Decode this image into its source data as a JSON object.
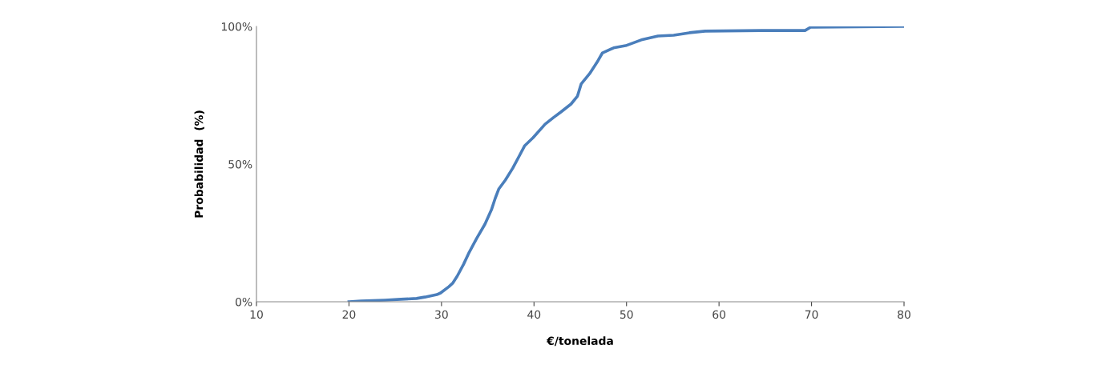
{
  "chart_data": {
    "type": "line",
    "xlabel": "€/tonelada",
    "ylabel": "Probabilidad  (%)",
    "series": [
      {
        "color": "#4a7ebb",
        "x": [
          20,
          21.3,
          23.9,
          25.6,
          27.3,
          28.2,
          29.5,
          29.9,
          30.8,
          31.2,
          31.7,
          32.4,
          33.0,
          33.8,
          34.7,
          35.4,
          35.8,
          36.2,
          36.9,
          37.7,
          38.4,
          39.0,
          39.9,
          41.2,
          42.1,
          42.9,
          44.0,
          44.7,
          45.1,
          46.0,
          46.8,
          47.4,
          48.6,
          49.9,
          51.6,
          53.4,
          55.1,
          56.8,
          58.5,
          64.6,
          69.3,
          69.9,
          80
        ],
        "values": [
          0,
          0.3,
          0.6,
          0.9,
          1.2,
          1.7,
          2.6,
          3.2,
          5.5,
          6.7,
          9.3,
          13.7,
          18.0,
          23,
          28.2,
          33.4,
          37.5,
          41,
          44.2,
          48.5,
          52.9,
          56.7,
          59.6,
          64.5,
          66.9,
          68.9,
          71.8,
          74.7,
          79.1,
          82.8,
          86.9,
          90.4,
          92.2,
          93.0,
          95.1,
          96.5,
          96.8,
          97.7,
          98.3,
          98.5,
          98.5,
          99.7,
          100
        ]
      }
    ],
    "xlim": [
      10,
      80
    ],
    "xticks": [
      10,
      20,
      30,
      40,
      50,
      60,
      70,
      80
    ],
    "ylim": [
      0,
      100
    ],
    "yticks": [
      {
        "value": 0,
        "label": "0%"
      },
      {
        "value": 50,
        "label": "50%"
      },
      {
        "value": 100,
        "label": "100%"
      }
    ],
    "grid": false,
    "legend": false,
    "marker": "none",
    "line_style": "solid"
  }
}
